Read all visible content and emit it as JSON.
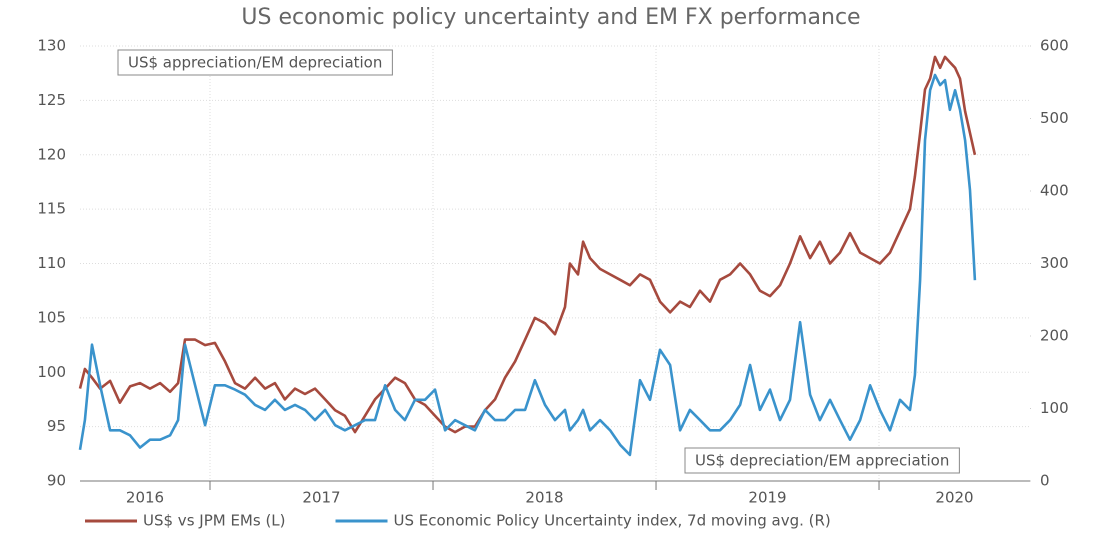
{
  "chart_data": {
    "type": "line",
    "title": "US economic policy uncertainty and EM FX performance",
    "annotations": [
      "US$ appreciation/EM depreciation",
      "US$ depreciation/EM appreciation"
    ],
    "x": [
      2016.417,
      2016.439,
      2016.471,
      2016.507,
      2016.552,
      2016.596,
      2016.641,
      2016.686,
      2016.731,
      2016.776,
      2016.821,
      2016.857,
      2016.888,
      2016.933,
      2016.978,
      2017.022,
      2017.067,
      2017.112,
      2017.157,
      2017.202,
      2017.247,
      2017.291,
      2017.336,
      2017.381,
      2017.426,
      2017.471,
      2017.516,
      2017.561,
      2017.605,
      2017.65,
      2017.695,
      2017.74,
      2017.785,
      2017.83,
      2017.874,
      2017.919,
      2017.964,
      2018.009,
      2018.054,
      2018.099,
      2018.143,
      2018.188,
      2018.233,
      2018.278,
      2018.323,
      2018.368,
      2018.413,
      2018.457,
      2018.502,
      2018.547,
      2018.592,
      2018.614,
      2018.65,
      2018.673,
      2018.704,
      2018.749,
      2018.794,
      2018.839,
      2018.883,
      2018.928,
      2018.973,
      2019.018,
      2019.063,
      2019.108,
      2019.152,
      2019.197,
      2019.242,
      2019.287,
      2019.332,
      2019.377,
      2019.422,
      2019.466,
      2019.511,
      2019.556,
      2019.601,
      2019.646,
      2019.691,
      2019.735,
      2019.78,
      2019.825,
      2019.87,
      2019.915,
      2019.96,
      2020.004,
      2020.049,
      2020.094,
      2020.139,
      2020.161,
      2020.184,
      2020.206,
      2020.229,
      2020.251,
      2020.274,
      2020.296,
      2020.318,
      2020.341,
      2020.363,
      2020.386,
      2020.408,
      2020.43
    ],
    "series": [
      {
        "name": "US$ vs JPM EMs (L)",
        "color": "#a64a3e",
        "axis": "y",
        "values": [
          98.5,
          100.3,
          99.5,
          98.5,
          99.2,
          97.2,
          98.7,
          99,
          98.5,
          99,
          98.2,
          99,
          103,
          103,
          102.5,
          102.7,
          101,
          99,
          98.5,
          99.5,
          98.5,
          99,
          97.5,
          98.5,
          98,
          98.5,
          97.5,
          96.5,
          96,
          94.5,
          96,
          97.5,
          98.5,
          99.5,
          99,
          97.5,
          97,
          96,
          95,
          94.5,
          95,
          95,
          96.5,
          97.5,
          99.5,
          101,
          103,
          105,
          104.5,
          103.5,
          106,
          110,
          109,
          112,
          110.5,
          109.5,
          109,
          108.5,
          108,
          109,
          108.5,
          106.5,
          105.5,
          106.5,
          106,
          107.5,
          106.5,
          108.5,
          109,
          110,
          109,
          107.5,
          107,
          108,
          110,
          112.5,
          110.5,
          112,
          110,
          111,
          112.8,
          111,
          110.5,
          110,
          111,
          113,
          115,
          118,
          122,
          126,
          127,
          129,
          128,
          129,
          128.5,
          128,
          127,
          124,
          122,
          120
        ]
      },
      {
        "name": "US Economic Policy Uncertainty index, 7d moving avg. (R)",
        "color": "#3a93cc",
        "axis": "y2",
        "values": [
          43,
          84,
          188,
          132,
          70,
          70,
          63,
          46,
          57,
          57,
          63,
          84,
          188,
          132,
          77,
          132,
          132,
          126,
          119,
          105,
          98,
          112,
          98,
          105,
          98,
          84,
          98,
          77,
          70,
          77,
          84,
          84,
          132,
          98,
          84,
          112,
          112,
          126,
          70,
          84,
          77,
          70,
          98,
          84,
          84,
          98,
          98,
          139,
          105,
          84,
          98,
          70,
          84,
          98,
          70,
          84,
          70,
          50,
          36,
          139,
          112,
          181,
          160,
          70,
          98,
          84,
          70,
          70,
          84,
          105,
          160,
          98,
          126,
          84,
          112,
          219,
          119,
          84,
          112,
          84,
          57,
          84,
          132,
          98,
          70,
          112,
          98,
          146,
          277,
          470,
          539,
          560,
          546,
          553,
          512,
          539,
          512,
          470,
          401,
          277
        ]
      }
    ],
    "xlim": [
      2016.417,
      2020.677
    ],
    "xticks": [
      2017,
      2018,
      2019,
      2020
    ],
    "xtick_labels": [
      "2016",
      "2017",
      "2018",
      "2019",
      "2020"
    ],
    "ylim": [
      90,
      130
    ],
    "yticks": [
      90,
      95,
      100,
      105,
      110,
      115,
      120,
      125,
      130
    ],
    "y2lim": [
      0,
      600
    ],
    "y2ticks": [
      0,
      100,
      200,
      300,
      400,
      500,
      600
    ],
    "grid": true,
    "legend": "bottom"
  }
}
